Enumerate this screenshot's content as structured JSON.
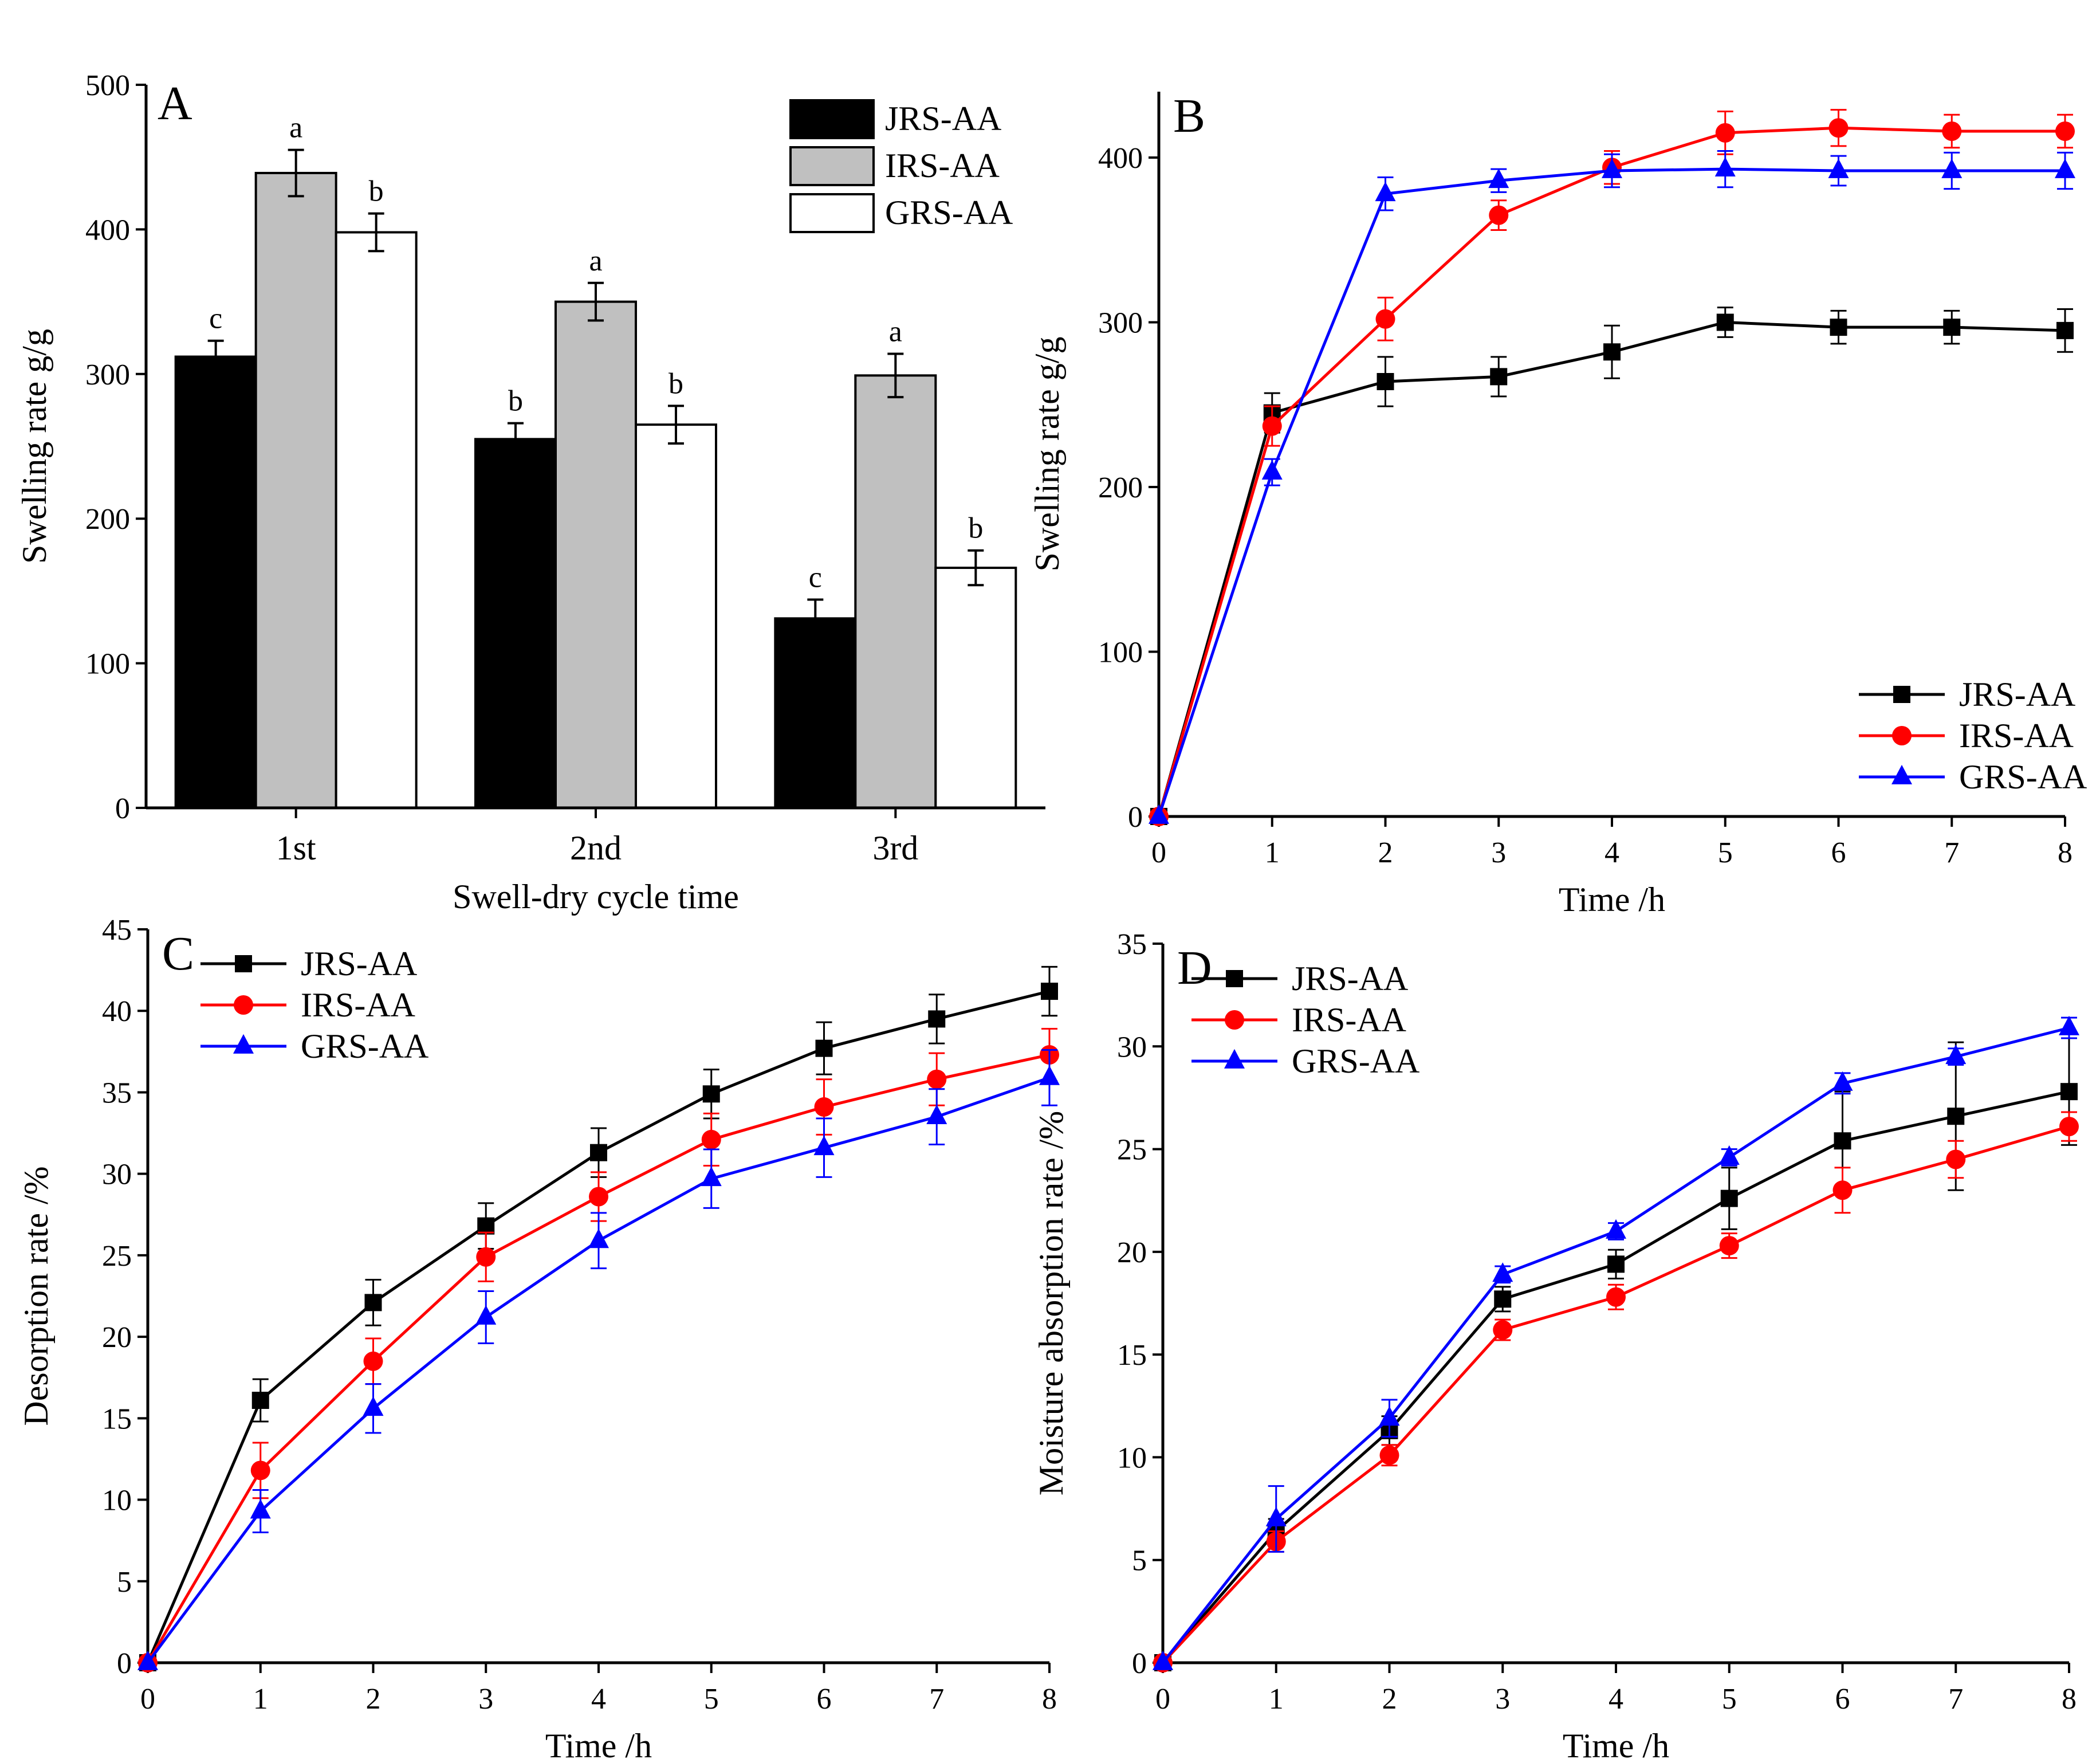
{
  "chart_data": [
    {
      "panel": "A",
      "type": "bar",
      "title": "",
      "xlabel": "Swell-dry cycle time",
      "ylabel": "Swelling rate g/g",
      "categories": [
        "1st",
        "2nd",
        "3rd"
      ],
      "ylim": [
        0,
        500
      ],
      "yticks": [
        0,
        100,
        200,
        300,
        400,
        500
      ],
      "legend_position": "top-right",
      "series": [
        {
          "name": "JRS-AA",
          "fill": "#000000",
          "values": [
            312,
            255,
            131
          ],
          "errors": [
            11,
            11,
            13
          ],
          "letters": [
            "c",
            "b",
            "c"
          ]
        },
        {
          "name": "IRS-AA",
          "fill": "#c0c0c0",
          "values": [
            439,
            350,
            299
          ],
          "errors": [
            16,
            13,
            15
          ],
          "letters": [
            "a",
            "a",
            "a"
          ]
        },
        {
          "name": "GRS-AA",
          "fill": "#ffffff",
          "values": [
            398,
            265,
            166
          ],
          "errors": [
            13,
            13,
            12
          ],
          "letters": [
            "b",
            "b",
            "b"
          ]
        }
      ]
    },
    {
      "panel": "B",
      "type": "line",
      "title": "",
      "xlabel": "Time /h",
      "ylabel": "Swelling rate g/g",
      "x": [
        0,
        1,
        2,
        3,
        4,
        5,
        6,
        7,
        8
      ],
      "xlim": [
        0,
        8
      ],
      "ylim": [
        0,
        440
      ],
      "yticks": [
        0,
        100,
        200,
        300,
        400
      ],
      "legend_position": "bottom-right",
      "series": [
        {
          "name": "JRS-AA",
          "color": "#000000",
          "marker": "square",
          "values": [
            0,
            245,
            264,
            267,
            282,
            300,
            297,
            297,
            295
          ],
          "errors": [
            0,
            12,
            15,
            12,
            16,
            9,
            10,
            10,
            13
          ]
        },
        {
          "name": "IRS-AA",
          "color": "#ff0000",
          "marker": "circle",
          "values": [
            0,
            237,
            302,
            365,
            394,
            415,
            418,
            416,
            416
          ],
          "errors": [
            0,
            12,
            13,
            9,
            10,
            13,
            11,
            10,
            10
          ]
        },
        {
          "name": "GRS-AA",
          "color": "#0000ff",
          "marker": "triangle",
          "values": [
            0,
            209,
            378,
            386,
            392,
            393,
            392,
            392,
            392
          ],
          "errors": [
            0,
            8,
            10,
            7,
            10,
            11,
            9,
            11,
            11
          ]
        }
      ]
    },
    {
      "panel": "C",
      "type": "line",
      "title": "",
      "xlabel": "Time /h",
      "ylabel": "Desorption rate /%",
      "x": [
        0,
        1,
        2,
        3,
        4,
        5,
        6,
        7,
        8
      ],
      "xlim": [
        0,
        8
      ],
      "ylim": [
        0,
        45
      ],
      "yticks": [
        0,
        5,
        10,
        15,
        20,
        25,
        30,
        35,
        40,
        45
      ],
      "legend_position": "top-left",
      "series": [
        {
          "name": "JRS-AA",
          "color": "#000000",
          "marker": "square",
          "values": [
            0,
            16.1,
            22.1,
            26.8,
            31.3,
            34.9,
            37.7,
            39.5,
            41.2
          ],
          "errors": [
            0,
            1.3,
            1.4,
            1.4,
            1.5,
            1.5,
            1.6,
            1.5,
            1.5
          ]
        },
        {
          "name": "IRS-AA",
          "color": "#ff0000",
          "marker": "circle",
          "values": [
            0,
            11.8,
            18.5,
            24.9,
            28.6,
            32.1,
            34.1,
            35.8,
            37.3
          ],
          "errors": [
            0,
            1.7,
            1.4,
            1.5,
            1.5,
            1.6,
            1.7,
            1.6,
            1.6
          ]
        },
        {
          "name": "GRS-AA",
          "color": "#0000ff",
          "marker": "triangle",
          "values": [
            0,
            9.3,
            15.6,
            21.2,
            25.9,
            29.7,
            31.6,
            33.5,
            35.9
          ],
          "errors": [
            0,
            1.3,
            1.5,
            1.6,
            1.7,
            1.8,
            1.8,
            1.7,
            1.7
          ]
        }
      ]
    },
    {
      "panel": "D",
      "type": "line",
      "title": "",
      "xlabel": "Time /h",
      "ylabel": "Moisture absorption rate /%",
      "x": [
        0,
        1,
        2,
        3,
        4,
        5,
        6,
        7,
        8
      ],
      "xlim": [
        0,
        8
      ],
      "ylim": [
        0,
        35
      ],
      "yticks": [
        0,
        5,
        10,
        15,
        20,
        25,
        30,
        35
      ],
      "legend_position": "top-left",
      "series": [
        {
          "name": "JRS-AA",
          "color": "#000000",
          "marker": "square",
          "values": [
            0,
            6.4,
            11.3,
            17.7,
            19.4,
            22.6,
            25.4,
            26.6,
            27.8
          ],
          "errors": [
            0,
            0.6,
            0.7,
            0.6,
            0.7,
            1.5,
            2.4,
            3.6,
            2.6
          ]
        },
        {
          "name": "IRS-AA",
          "color": "#ff0000",
          "marker": "circle",
          "values": [
            0,
            5.9,
            10.1,
            16.2,
            17.8,
            20.3,
            23.0,
            24.5,
            26.1
          ],
          "errors": [
            0,
            0.5,
            0.5,
            0.5,
            0.6,
            0.6,
            1.1,
            0.9,
            0.7
          ]
        },
        {
          "name": "GRS-AA",
          "color": "#0000ff",
          "marker": "triangle",
          "values": [
            0,
            7.0,
            11.9,
            18.9,
            21.0,
            24.6,
            28.2,
            29.5,
            30.9
          ],
          "errors": [
            0,
            1.6,
            0.9,
            0.4,
            0.4,
            0.4,
            0.5,
            0.4,
            0.5
          ]
        }
      ]
    }
  ]
}
